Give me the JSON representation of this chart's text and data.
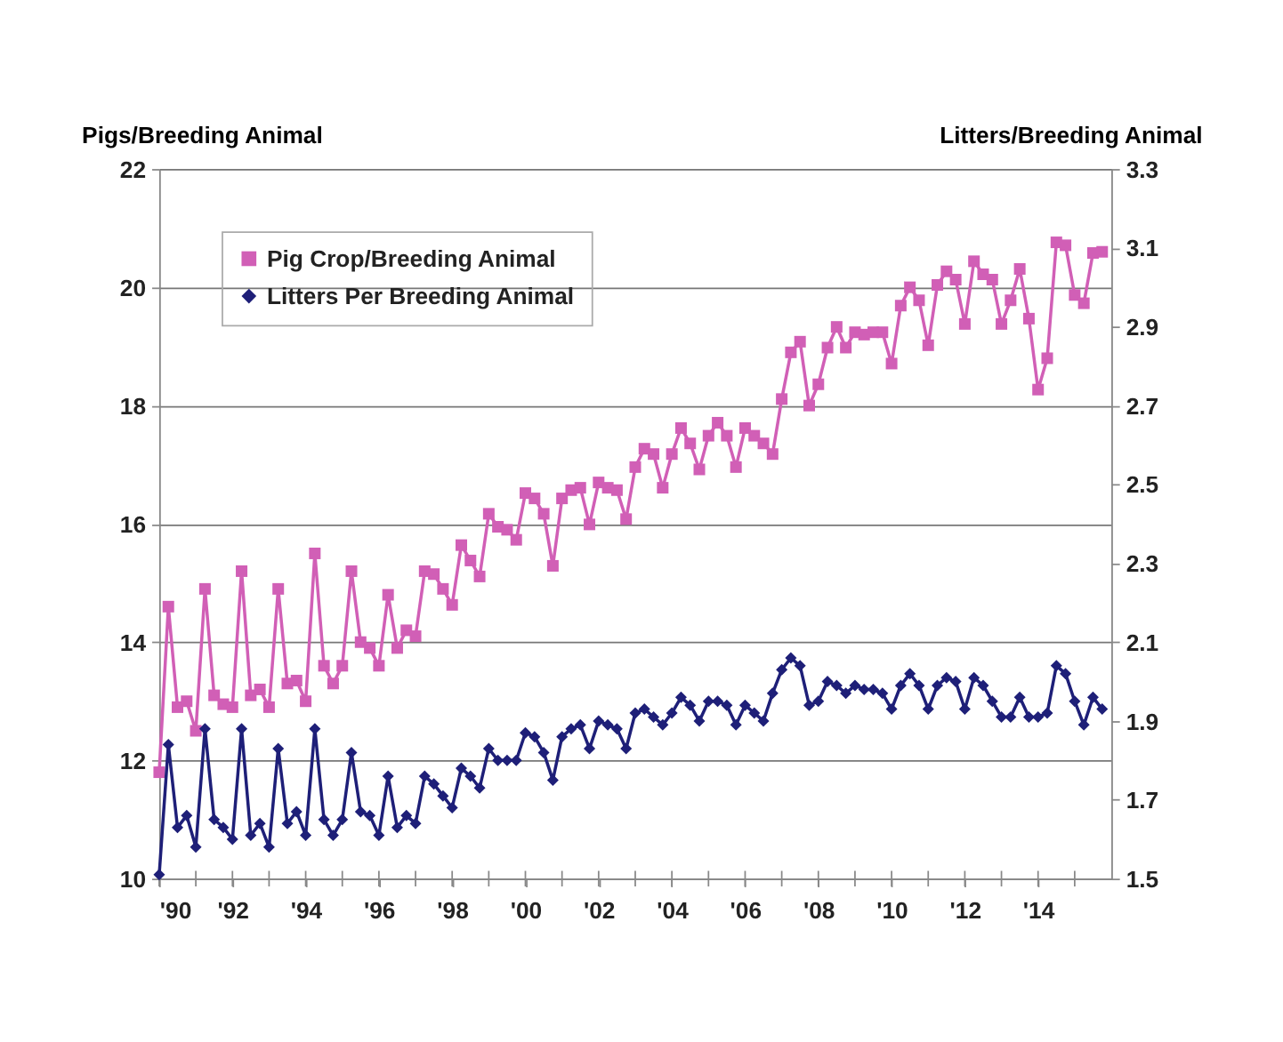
{
  "chart_data": {
    "type": "line",
    "ylabel": "Pigs/Breeding Animal",
    "y2label": "Litters/Breeding Animal",
    "x": [
      1990,
      1990.25,
      1990.5,
      1990.75,
      1991,
      1991.25,
      1991.5,
      1991.75,
      1992,
      1992.25,
      1992.5,
      1992.75,
      1993,
      1993.25,
      1993.5,
      1993.75,
      1994,
      1994.25,
      1994.5,
      1994.75,
      1995,
      1995.25,
      1995.5,
      1995.75,
      1996,
      1996.25,
      1996.5,
      1996.75,
      1997,
      1997.25,
      1997.5,
      1997.75,
      1998,
      1998.25,
      1998.5,
      1998.75,
      1999,
      1999.25,
      1999.5,
      1999.75,
      2000,
      2000.25,
      2000.5,
      2000.75,
      2001,
      2001.25,
      2001.5,
      2001.75,
      2002,
      2002.25,
      2002.5,
      2002.75,
      2003,
      2003.25,
      2003.5,
      2003.75,
      2004,
      2004.25,
      2004.5,
      2004.75,
      2005,
      2005.25,
      2005.5,
      2005.75,
      2006,
      2006.25,
      2006.5,
      2006.75,
      2007,
      2007.25,
      2007.5,
      2007.75,
      2008,
      2008.25,
      2008.5,
      2008.75,
      2009,
      2009.25,
      2009.5,
      2009.75,
      2010,
      2010.25,
      2010.5,
      2010.75,
      2011,
      2011.25,
      2011.5,
      2011.75,
      2012,
      2012.25,
      2012.5,
      2012.75,
      2013,
      2013.25,
      2013.5,
      2013.75,
      2014,
      2014.25,
      2014.5,
      2014.75,
      2015,
      2015.25,
      2015.5,
      2015.75
    ],
    "series": [
      {
        "name": "Pig Crop/Breeding Animal",
        "color": "#d15fb6",
        "marker": "square",
        "values": [
          11.8,
          14.6,
          12.9,
          13.0,
          12.5,
          14.9,
          13.1,
          12.95,
          12.9,
          15.2,
          13.1,
          13.2,
          12.9,
          14.9,
          13.3,
          13.35,
          13.0,
          15.5,
          13.6,
          13.3,
          13.6,
          15.2,
          14.0,
          13.9,
          13.6,
          14.8,
          13.9,
          14.2,
          14.1,
          15.2,
          15.15,
          14.9,
          14.63,
          15.64,
          15.38,
          15.11,
          16.17,
          15.95,
          15.9,
          15.73,
          16.52,
          16.43,
          16.17,
          15.29,
          16.43,
          16.57,
          16.61,
          15.99,
          16.7,
          16.61,
          16.57,
          16.08,
          16.96,
          17.27,
          17.18,
          16.61,
          17.18,
          17.62,
          17.36,
          16.92,
          17.49,
          17.71,
          17.49,
          16.96,
          17.62,
          17.49,
          17.36,
          17.18,
          18.11,
          18.9,
          19.08,
          18.0,
          18.36,
          18.98,
          19.33,
          18.98,
          19.24,
          19.2,
          19.24,
          19.24,
          18.71,
          19.69,
          20.0,
          19.78,
          19.02,
          20.04,
          20.27,
          20.13,
          19.38,
          20.44,
          20.22,
          20.13,
          19.38,
          19.78,
          20.31,
          19.47,
          18.27,
          18.8,
          20.76,
          20.71,
          19.87,
          19.73,
          20.58,
          20.6
        ]
      },
      {
        "name": "Litters Per Breeding Animal",
        "color": "#1e1f78",
        "marker": "diamond",
        "axis": "y2",
        "values": [
          1.51,
          1.84,
          1.63,
          1.66,
          1.58,
          1.88,
          1.65,
          1.63,
          1.6,
          1.88,
          1.61,
          1.64,
          1.58,
          1.83,
          1.64,
          1.67,
          1.61,
          1.88,
          1.65,
          1.61,
          1.65,
          1.82,
          1.67,
          1.66,
          1.61,
          1.76,
          1.63,
          1.66,
          1.64,
          1.76,
          1.74,
          1.71,
          1.68,
          1.78,
          1.76,
          1.73,
          1.83,
          1.8,
          1.8,
          1.8,
          1.87,
          1.86,
          1.82,
          1.75,
          1.86,
          1.88,
          1.89,
          1.83,
          1.9,
          1.89,
          1.88,
          1.83,
          1.92,
          1.93,
          1.91,
          1.89,
          1.92,
          1.96,
          1.94,
          1.9,
          1.95,
          1.95,
          1.94,
          1.89,
          1.94,
          1.92,
          1.9,
          1.97,
          2.03,
          2.06,
          2.04,
          1.94,
          1.95,
          2.0,
          1.99,
          1.97,
          1.99,
          1.98,
          1.98,
          1.97,
          1.93,
          1.99,
          2.02,
          1.99,
          1.93,
          1.99,
          2.01,
          2.0,
          1.93,
          2.01,
          1.99,
          1.95,
          1.91,
          1.91,
          1.96,
          1.91,
          1.91,
          1.92,
          2.04,
          2.02,
          1.95,
          1.89,
          1.96,
          1.93
        ]
      }
    ],
    "xlim": [
      1990,
      2016
    ],
    "xticks": [
      {
        "value": 1990,
        "label": "'90"
      },
      {
        "value": 1991,
        "label": null
      },
      {
        "value": 1992,
        "label": "'92"
      },
      {
        "value": 1993,
        "label": null
      },
      {
        "value": 1994,
        "label": "'94"
      },
      {
        "value": 1995,
        "label": null
      },
      {
        "value": 1996,
        "label": "'96"
      },
      {
        "value": 1997,
        "label": null
      },
      {
        "value": 1998,
        "label": "'98"
      },
      {
        "value": 1999,
        "label": null
      },
      {
        "value": 2000,
        "label": "'00"
      },
      {
        "value": 2001,
        "label": null
      },
      {
        "value": 2002,
        "label": "'02"
      },
      {
        "value": 2003,
        "label": null
      },
      {
        "value": 2004,
        "label": "'04"
      },
      {
        "value": 2005,
        "label": null
      },
      {
        "value": 2006,
        "label": "'06"
      },
      {
        "value": 2007,
        "label": null
      },
      {
        "value": 2008,
        "label": "'08"
      },
      {
        "value": 2009,
        "label": null
      },
      {
        "value": 2010,
        "label": "'10"
      },
      {
        "value": 2011,
        "label": null
      },
      {
        "value": 2012,
        "label": "'12"
      },
      {
        "value": 2013,
        "label": null
      },
      {
        "value": 2014,
        "label": "'14"
      },
      {
        "value": 2015,
        "label": null
      }
    ],
    "ylim": [
      10,
      22
    ],
    "yticks": [
      10,
      12,
      14,
      16,
      18,
      20,
      22
    ],
    "y2lim": [
      1.5,
      3.3
    ],
    "y2ticks": [
      1.5,
      1.7,
      1.9,
      2.1,
      2.3,
      2.5,
      2.7,
      2.9,
      3.1,
      3.3
    ],
    "grid": "y",
    "legend": "top left",
    "line_style": "solid"
  }
}
